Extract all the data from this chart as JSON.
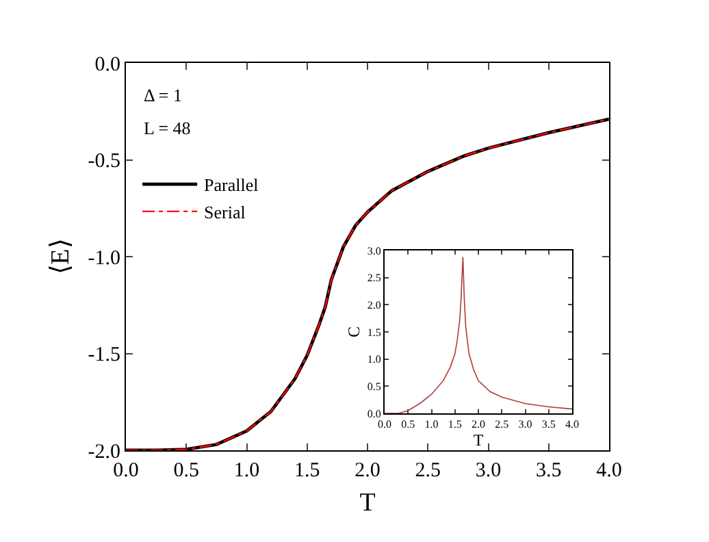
{
  "chart_data": [
    {
      "type": "line",
      "xlabel": "T",
      "ylabel": "⟨E⟩",
      "x": [
        0,
        0.25,
        0.5,
        0.75,
        1.0,
        1.2,
        1.4,
        1.5,
        1.6,
        1.65,
        1.7,
        1.8,
        1.9,
        2.0,
        2.2,
        2.5,
        2.8,
        3.0,
        3.5,
        4.0
      ],
      "series": [
        {
          "name": "Parallel",
          "color": "#000000",
          "line_style": "solid",
          "values": [
            -2,
            -2,
            -1.995,
            -1.97,
            -1.9,
            -1.8,
            -1.63,
            -1.51,
            -1.35,
            -1.26,
            -1.12,
            -0.95,
            -0.84,
            -0.77,
            -0.66,
            -0.56,
            -0.48,
            -0.44,
            -0.36,
            -0.29
          ]
        },
        {
          "name": "Serial",
          "color": "#ff0000",
          "line_style": "dashdot",
          "values": [
            -2,
            -2,
            -1.995,
            -1.97,
            -1.9,
            -1.8,
            -1.63,
            -1.51,
            -1.35,
            -1.26,
            -1.12,
            -0.95,
            -0.84,
            -0.77,
            -0.66,
            -0.56,
            -0.48,
            -0.44,
            -0.36,
            -0.29
          ]
        }
      ],
      "xlim": [
        0,
        4
      ],
      "xticks": [
        {
          "value": 0,
          "label": "0.0"
        },
        0.5,
        {
          "value": 1,
          "label": "1.0"
        },
        1.5,
        {
          "value": 2,
          "label": "2.0"
        },
        2.5,
        {
          "value": 3,
          "label": "3.0"
        },
        3.5,
        {
          "value": 4,
          "label": "4.0"
        }
      ],
      "ylim": [
        -2,
        0
      ],
      "yticks": [
        {
          "value": -2,
          "label": "-2.0"
        },
        -1.5,
        {
          "value": -1,
          "label": "-1.0"
        },
        -0.5,
        {
          "value": 0,
          "label": "0.0"
        }
      ],
      "annotations": [
        "Δ = 1",
        "L = 48"
      ],
      "legend": "top left",
      "grid": false
    },
    {
      "type": "line",
      "xlabel": "T",
      "ylabel": "C",
      "x": [
        0,
        0.3,
        0.5,
        0.75,
        1.0,
        1.25,
        1.4,
        1.5,
        1.55,
        1.6,
        1.63,
        1.67,
        1.7,
        1.73,
        1.8,
        1.9,
        2.0,
        2.25,
        2.5,
        3.0,
        3.5,
        4.0
      ],
      "series": [
        {
          "color": "#b03a3a",
          "line_style": "solid",
          "values": [
            0,
            0,
            0.05,
            0.18,
            0.35,
            0.6,
            0.85,
            1.1,
            1.35,
            1.7,
            2.1,
            2.88,
            2.1,
            1.6,
            1.1,
            0.8,
            0.6,
            0.4,
            0.3,
            0.18,
            0.12,
            0.08
          ]
        }
      ],
      "xlim": [
        0,
        4
      ],
      "xticks": [
        {
          "value": 0,
          "label": "0.0"
        },
        0.5,
        {
          "value": 1,
          "label": "1.0"
        },
        1.5,
        {
          "value": 2,
          "label": "2.0"
        },
        2.5,
        {
          "value": 3,
          "label": "3.0"
        },
        3.5,
        {
          "value": 4,
          "label": "4.0"
        }
      ],
      "ylim": [
        0,
        3
      ],
      "yticks": [
        {
          "value": 0,
          "label": "0.0"
        },
        0.5,
        {
          "value": 1,
          "label": "1.0"
        },
        1.5,
        {
          "value": 2,
          "label": "2.0"
        },
        2.5,
        {
          "value": 3,
          "label": "3.0"
        }
      ],
      "legend": false,
      "grid": false
    }
  ]
}
